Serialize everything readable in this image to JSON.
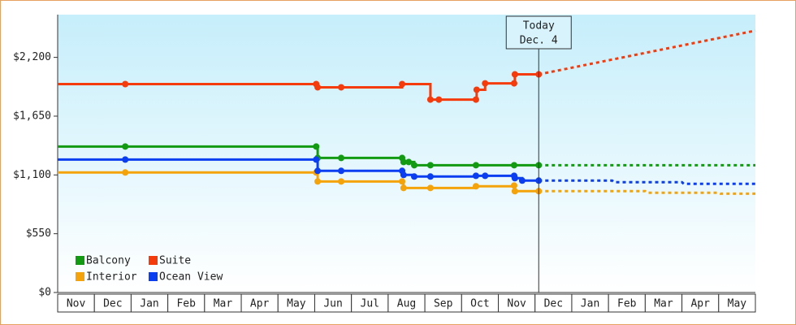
{
  "chart_data": {
    "type": "step-line",
    "categories": [
      "Nov",
      "Dec",
      "Jan",
      "Feb",
      "Mar",
      "Apr",
      "May",
      "Jun",
      "Jul",
      "Aug",
      "Sep",
      "Oct",
      "Nov",
      "Dec",
      "Jan",
      "Feb",
      "Mar",
      "Apr",
      "May"
    ],
    "xlim": [
      0,
      19
    ],
    "ylim": [
      0,
      2600
    ],
    "yticks": [
      {
        "value": 0,
        "label": "$0"
      },
      {
        "value": 550,
        "label": "$550"
      },
      {
        "value": 1100,
        "label": "$1,100"
      },
      {
        "value": 1650,
        "label": "$1,650"
      },
      {
        "value": 2200,
        "label": "$2,200"
      }
    ],
    "annotation": {
      "lines": [
        "Today",
        "Dec. 4"
      ],
      "x": 13.1
    },
    "legend": "lower left",
    "series": [
      {
        "name": "Balcony",
        "color": "#139a13",
        "x": [
          0,
          1.84,
          7.04,
          7.08,
          7.72,
          9.38,
          9.42,
          9.56,
          9.71,
          10.15,
          11.39,
          12.43,
          13.1
        ],
        "values": [
          1366,
          1366,
          1366,
          1259,
          1259,
          1259,
          1221,
          1221,
          1191,
          1191,
          1191,
          1191,
          1191
        ],
        "forecast_x": [
          13.1,
          19
        ],
        "forecast_values": [
          1191,
          1191
        ]
      },
      {
        "name": "Suite",
        "color": "#f53a0c",
        "x": [
          0,
          1.84,
          7.04,
          7.08,
          7.72,
          9.38,
          10.15,
          10.38,
          11.39,
          11.41,
          11.64,
          12.43,
          12.45,
          13.1
        ],
        "values": [
          1950,
          1950,
          1950,
          1920,
          1920,
          1950,
          1805,
          1805,
          1805,
          1897,
          1957,
          1957,
          2041,
          2041
        ],
        "forecast_x": [
          13.1,
          19
        ],
        "forecast_values": [
          2041,
          2450
        ]
      },
      {
        "name": "Interior",
        "color": "#f5a30a",
        "x": [
          0,
          1.84,
          7.04,
          7.08,
          7.72,
          9.38,
          9.42,
          10.15,
          11.39,
          12.43,
          12.45,
          13.1
        ],
        "values": [
          1123,
          1123,
          1123,
          1039,
          1039,
          1039,
          978,
          978,
          994,
          1001,
          948,
          948
        ],
        "forecast_x": [
          13.1,
          16.0,
          16.05,
          18.0,
          18.05,
          19
        ],
        "forecast_values": [
          948,
          948,
          933,
          933,
          925,
          925
        ]
      },
      {
        "name": "Ocean View",
        "color": "#0a3ef0",
        "x": [
          0,
          1.84,
          7.04,
          7.08,
          7.72,
          9.38,
          9.42,
          9.71,
          10.15,
          11.39,
          11.64,
          12.43,
          12.45,
          12.65,
          13.1
        ],
        "values": [
          1244,
          1244,
          1244,
          1138,
          1138,
          1138,
          1100,
          1085,
          1085,
          1092,
          1092,
          1092,
          1070,
          1047,
          1047
        ],
        "forecast_x": [
          13.1,
          15.1,
          15.15,
          17.0,
          17.05,
          19
        ],
        "forecast_values": [
          1047,
          1047,
          1032,
          1032,
          1017,
          1017
        ]
      }
    ]
  }
}
